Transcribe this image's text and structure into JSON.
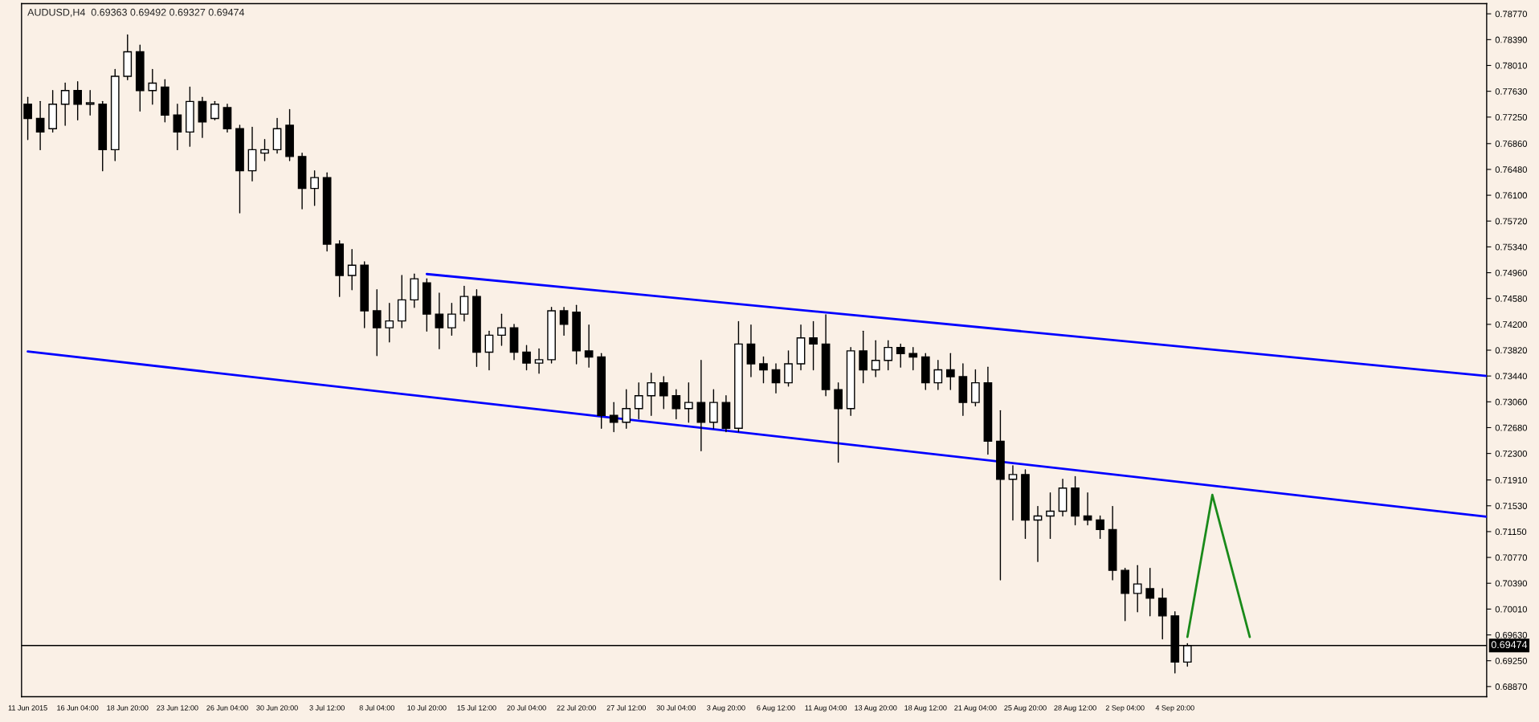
{
  "chart_data": {
    "type": "candlestick",
    "title": "AUDUSD,H4  0.69363 0.69492 0.69327 0.69474",
    "categories": [
      "11 Jun 2015",
      null,
      null,
      null,
      "16 Jun 04:00",
      null,
      null,
      null,
      "18 Jun 20:00",
      null,
      null,
      null,
      "23 Jun 12:00",
      null,
      null,
      null,
      "26 Jun 04:00",
      null,
      null,
      null,
      "30 Jun 20:00",
      null,
      null,
      null,
      "3 Jul 12:00",
      null,
      null,
      null,
      "8 Jul 04:00",
      null,
      null,
      null,
      "10 Jul 20:00",
      null,
      null,
      null,
      "15 Jul 12:00",
      null,
      null,
      null,
      "20 Jul 04:00",
      null,
      null,
      null,
      "22 Jul 20:00",
      null,
      null,
      null,
      "27 Jul 12:00",
      null,
      null,
      null,
      "30 Jul 04:00",
      null,
      null,
      null,
      "3 Aug 20:00",
      null,
      null,
      null,
      "6 Aug 12:00",
      null,
      null,
      null,
      "11 Aug 04:00",
      null,
      null,
      null,
      "13 Aug 20:00",
      null,
      null,
      null,
      "18 Aug 12:00",
      null,
      null,
      null,
      "21 Aug 04:00",
      null,
      null,
      null,
      "25 Aug 20:00",
      null,
      null,
      null,
      "28 Aug 12:00",
      null,
      null,
      null,
      "2 Sep 04:00",
      null,
      null,
      null,
      "4 Sep 20:00",
      null,
      null,
      null,
      null,
      null,
      null,
      null,
      null,
      null,
      null,
      null,
      null,
      null,
      null,
      null,
      null,
      null,
      null,
      null,
      null,
      null,
      null,
      null,
      null,
      null
    ],
    "ohlc": [
      [
        0.7744,
        0.7754,
        0.7692,
        0.7723
      ],
      [
        0.7723,
        0.7748,
        0.7677,
        0.7703
      ],
      [
        0.7708,
        0.7764,
        0.7703,
        0.7744
      ],
      [
        0.7744,
        0.7775,
        0.7713,
        0.7764
      ],
      [
        0.7764,
        0.7777,
        0.7721,
        0.7744
      ],
      [
        0.7744,
        0.7764,
        0.7728,
        0.7746
      ],
      [
        0.7744,
        0.7748,
        0.7646,
        0.7677
      ],
      [
        0.7677,
        0.7795,
        0.7661,
        0.7785
      ],
      [
        0.7785,
        0.7846,
        0.778,
        0.7821
      ],
      [
        0.7821,
        0.7831,
        0.7734,
        0.7764
      ],
      [
        0.7764,
        0.7795,
        0.7744,
        0.7775
      ],
      [
        0.7769,
        0.778,
        0.7718,
        0.7728
      ],
      [
        0.7728,
        0.7744,
        0.7677,
        0.7703
      ],
      [
        0.7703,
        0.7769,
        0.7682,
        0.7748
      ],
      [
        0.7748,
        0.7754,
        0.7695,
        0.7718
      ],
      [
        0.7723,
        0.7748,
        0.7721,
        0.7744
      ],
      [
        0.7739,
        0.7744,
        0.7703,
        0.7708
      ],
      [
        0.7708,
        0.7713,
        0.7584,
        0.7646
      ],
      [
        0.7646,
        0.771,
        0.7631,
        0.7677
      ],
      [
        0.7672,
        0.7692,
        0.7661,
        0.7677
      ],
      [
        0.7677,
        0.7723,
        0.7672,
        0.7708
      ],
      [
        0.7713,
        0.7736,
        0.7661,
        0.7667
      ],
      [
        0.7667,
        0.7672,
        0.759,
        0.762
      ],
      [
        0.762,
        0.7646,
        0.7595,
        0.7636
      ],
      [
        0.7636,
        0.7643,
        0.7528,
        0.7538
      ],
      [
        0.7538,
        0.7543,
        0.7461,
        0.7492
      ],
      [
        0.7492,
        0.753,
        0.7471,
        0.7507
      ],
      [
        0.7507,
        0.7512,
        0.7415,
        0.744
      ],
      [
        0.744,
        0.7471,
        0.7374,
        0.7415
      ],
      [
        0.7415,
        0.7451,
        0.7394,
        0.7425
      ],
      [
        0.7425,
        0.7492,
        0.7415,
        0.7456
      ],
      [
        0.7456,
        0.7494,
        0.7445,
        0.7487
      ],
      [
        0.7481,
        0.7487,
        0.741,
        0.7435
      ],
      [
        0.7435,
        0.7466,
        0.7384,
        0.7415
      ],
      [
        0.7415,
        0.7451,
        0.7404,
        0.7435
      ],
      [
        0.7435,
        0.7476,
        0.7425,
        0.7461
      ],
      [
        0.7461,
        0.7471,
        0.7358,
        0.7379
      ],
      [
        0.7379,
        0.741,
        0.7353,
        0.7404
      ],
      [
        0.7404,
        0.7435,
        0.7389,
        0.7415
      ],
      [
        0.7415,
        0.742,
        0.7368,
        0.7379
      ],
      [
        0.7379,
        0.7389,
        0.7353,
        0.7363
      ],
      [
        0.7363,
        0.7384,
        0.7348,
        0.7368
      ],
      [
        0.7368,
        0.7445,
        0.7363,
        0.744
      ],
      [
        0.744,
        0.7445,
        0.7404,
        0.742
      ],
      [
        0.7438,
        0.7448,
        0.7362,
        0.7381
      ],
      [
        0.7381,
        0.7419,
        0.7357,
        0.7372
      ],
      [
        0.7372,
        0.7377,
        0.7267,
        0.7286
      ],
      [
        0.7286,
        0.7305,
        0.7262,
        0.7276
      ],
      [
        0.7276,
        0.7324,
        0.7267,
        0.7296
      ],
      [
        0.7296,
        0.7334,
        0.7281,
        0.7315
      ],
      [
        0.7315,
        0.7348,
        0.7286,
        0.7334
      ],
      [
        0.7334,
        0.7343,
        0.7296,
        0.7315
      ],
      [
        0.7315,
        0.7324,
        0.7281,
        0.7296
      ],
      [
        0.7296,
        0.7334,
        0.7276,
        0.7305
      ],
      [
        0.7305,
        0.7367,
        0.7234,
        0.7276
      ],
      [
        0.7276,
        0.7324,
        0.7267,
        0.7305
      ],
      [
        0.7305,
        0.7315,
        0.7262,
        0.7267
      ],
      [
        0.7267,
        0.7424,
        0.7262,
        0.7391
      ],
      [
        0.7391,
        0.7419,
        0.7343,
        0.7362
      ],
      [
        0.7362,
        0.7372,
        0.7334,
        0.7353
      ],
      [
        0.7353,
        0.7362,
        0.7319,
        0.7334
      ],
      [
        0.7334,
        0.7381,
        0.7329,
        0.7362
      ],
      [
        0.7362,
        0.7419,
        0.7353,
        0.74
      ],
      [
        0.74,
        0.7424,
        0.7353,
        0.7391
      ],
      [
        0.7391,
        0.7434,
        0.7315,
        0.7324
      ],
      [
        0.7324,
        0.7334,
        0.7217,
        0.7296
      ],
      [
        0.7296,
        0.7386,
        0.7286,
        0.7381
      ],
      [
        0.7381,
        0.741,
        0.7334,
        0.7353
      ],
      [
        0.7353,
        0.7396,
        0.7343,
        0.7367
      ],
      [
        0.7367,
        0.7396,
        0.7353,
        0.7386
      ],
      [
        0.7386,
        0.7391,
        0.7357,
        0.7377
      ],
      [
        0.7377,
        0.7386,
        0.7353,
        0.7372
      ],
      [
        0.7372,
        0.7377,
        0.7324,
        0.7334
      ],
      [
        0.7334,
        0.7367,
        0.7324,
        0.7353
      ],
      [
        0.7353,
        0.7377,
        0.7324,
        0.7343
      ],
      [
        0.7343,
        0.7362,
        0.7286,
        0.7305
      ],
      [
        0.7305,
        0.7353,
        0.73,
        0.7334
      ],
      [
        0.7334,
        0.7357,
        0.7229,
        0.7248
      ],
      [
        0.7248,
        0.7293,
        0.7044,
        0.7192
      ],
      [
        0.7192,
        0.7212,
        0.7132,
        0.7199
      ],
      [
        0.7199,
        0.7206,
        0.7105,
        0.7132
      ],
      [
        0.7132,
        0.7152,
        0.7071,
        0.7138
      ],
      [
        0.7138,
        0.7172,
        0.7105,
        0.7145
      ],
      [
        0.7145,
        0.7192,
        0.7138,
        0.7179
      ],
      [
        0.7179,
        0.7196,
        0.7125,
        0.7138
      ],
      [
        0.7138,
        0.7172,
        0.7125,
        0.7132
      ],
      [
        0.7132,
        0.7138,
        0.7105,
        0.7118
      ],
      [
        0.7118,
        0.7152,
        0.7044,
        0.7058
      ],
      [
        0.7058,
        0.7061,
        0.6984,
        0.7024
      ],
      [
        0.7024,
        0.7065,
        0.6997,
        0.7038
      ],
      [
        0.7031,
        0.7061,
        0.6991,
        0.7017
      ],
      [
        0.7017,
        0.7031,
        0.6957,
        0.6991
      ],
      [
        0.6991,
        0.6997,
        0.6907,
        0.6923
      ],
      [
        0.6923,
        0.695,
        0.6917,
        0.6947
      ],
      null,
      null,
      null,
      null,
      null,
      null,
      null,
      null,
      null,
      null,
      null,
      null,
      null,
      null,
      null,
      null,
      null,
      null,
      null,
      null,
      null,
      null,
      null,
      null
    ],
    "series": [
      {
        "type": "line",
        "color": "#0000ff",
        "values": [
          null,
          null,
          null,
          null,
          null,
          null,
          null,
          null,
          null,
          null,
          null,
          null,
          null,
          null,
          null,
          null,
          null,
          null,
          null,
          null,
          null,
          null,
          null,
          null,
          null,
          null,
          null,
          null,
          null,
          null,
          null,
          null,
          0.7494,
          null,
          null,
          null,
          null,
          null,
          null,
          null,
          null,
          null,
          null,
          null,
          null,
          null,
          null,
          null,
          null,
          null,
          null,
          null,
          null,
          null,
          null,
          null,
          null,
          null,
          null,
          null,
          null,
          null,
          null,
          null,
          null,
          null,
          null,
          null,
          null,
          null,
          null,
          null,
          null,
          null,
          null,
          null,
          null,
          null,
          null,
          null,
          null,
          null,
          null,
          null,
          null,
          null,
          null,
          null,
          null,
          null,
          null,
          null,
          null,
          null,
          null,
          null,
          null,
          null,
          null,
          null,
          null,
          null,
          null,
          null,
          null,
          null,
          null,
          null,
          null,
          null,
          null,
          null,
          null,
          null,
          null,
          null,
          null,
          0.7344
        ]
      },
      {
        "type": "line",
        "color": "#0000ff",
        "values": [
          0.738,
          null,
          null,
          null,
          null,
          null,
          null,
          null,
          null,
          null,
          null,
          null,
          null,
          null,
          null,
          null,
          null,
          null,
          null,
          null,
          null,
          null,
          null,
          null,
          null,
          null,
          null,
          null,
          null,
          null,
          null,
          null,
          null,
          null,
          null,
          null,
          null,
          null,
          null,
          null,
          null,
          null,
          null,
          null,
          null,
          null,
          null,
          null,
          null,
          null,
          null,
          null,
          null,
          null,
          null,
          null,
          null,
          null,
          null,
          null,
          null,
          null,
          null,
          null,
          null,
          null,
          null,
          null,
          null,
          null,
          null,
          null,
          null,
          null,
          null,
          null,
          null,
          null,
          null,
          null,
          null,
          null,
          null,
          null,
          null,
          null,
          null,
          null,
          null,
          null,
          null,
          null,
          null,
          null,
          null,
          null,
          null,
          null,
          null,
          null,
          null,
          null,
          null,
          null,
          null,
          null,
          null,
          null,
          null,
          null,
          null,
          null,
          null,
          null,
          null,
          null,
          null,
          0.7137
        ]
      },
      {
        "type": "line",
        "color": "#1a8a1a",
        "values": [
          null,
          null,
          null,
          null,
          null,
          null,
          null,
          null,
          null,
          null,
          null,
          null,
          null,
          null,
          null,
          null,
          null,
          null,
          null,
          null,
          null,
          null,
          null,
          null,
          null,
          null,
          null,
          null,
          null,
          null,
          null,
          null,
          null,
          null,
          null,
          null,
          null,
          null,
          null,
          null,
          null,
          null,
          null,
          null,
          null,
          null,
          null,
          null,
          null,
          null,
          null,
          null,
          null,
          null,
          null,
          null,
          null,
          null,
          null,
          null,
          null,
          null,
          null,
          null,
          null,
          null,
          null,
          null,
          null,
          null,
          null,
          null,
          null,
          null,
          null,
          null,
          null,
          null,
          null,
          null,
          null,
          null,
          null,
          null,
          null,
          null,
          null,
          null,
          null,
          null,
          null,
          null,
          null,
          0.696,
          null,
          0.7169,
          null,
          null,
          0.696,
          null,
          null,
          null,
          null,
          null,
          null,
          null,
          null,
          null,
          null,
          null,
          null,
          null,
          null,
          null,
          null,
          null,
          null,
          null
        ]
      }
    ],
    "ref_lines": [
      {
        "axis": "y",
        "value": 0.69474,
        "label": "0.69474",
        "color": "#000000"
      }
    ],
    "ylim": [
      0.6872,
      0.7892
    ],
    "yticks": [
      {
        "value": 0.6887,
        "label": "0.68870"
      },
      {
        "value": 0.6925,
        "label": "0.69250"
      },
      {
        "value": 0.6963,
        "label": "0.69630"
      },
      {
        "value": 0.7001,
        "label": "0.70010"
      },
      {
        "value": 0.7039,
        "label": "0.70390"
      },
      {
        "value": 0.7077,
        "label": "0.70770"
      },
      {
        "value": 0.7115,
        "label": "0.71150"
      },
      {
        "value": 0.7153,
        "label": "0.71530"
      },
      {
        "value": 0.7191,
        "label": "0.71910"
      },
      {
        "value": 0.723,
        "label": "0.72300"
      },
      {
        "value": 0.7268,
        "label": "0.72680"
      },
      {
        "value": 0.7306,
        "label": "0.73060"
      },
      {
        "value": 0.7344,
        "label": "0.73440"
      },
      {
        "value": 0.7382,
        "label": "0.73820"
      },
      {
        "value": 0.742,
        "label": "0.74200"
      },
      {
        "value": 0.7458,
        "label": "0.74580"
      },
      {
        "value": 0.7496,
        "label": "0.74960"
      },
      {
        "value": 0.7534,
        "label": "0.75340"
      },
      {
        "value": 0.7572,
        "label": "0.75720"
      },
      {
        "value": 0.761,
        "label": "0.76100"
      },
      {
        "value": 0.7648,
        "label": "0.76480"
      },
      {
        "value": 0.7686,
        "label": "0.76860"
      },
      {
        "value": 0.7725,
        "label": "0.77250"
      },
      {
        "value": 0.7763,
        "label": "0.77630"
      },
      {
        "value": 0.7801,
        "label": "0.78010"
      },
      {
        "value": 0.7839,
        "label": "0.78390"
      },
      {
        "value": 0.7877,
        "label": "0.78770"
      }
    ]
  }
}
